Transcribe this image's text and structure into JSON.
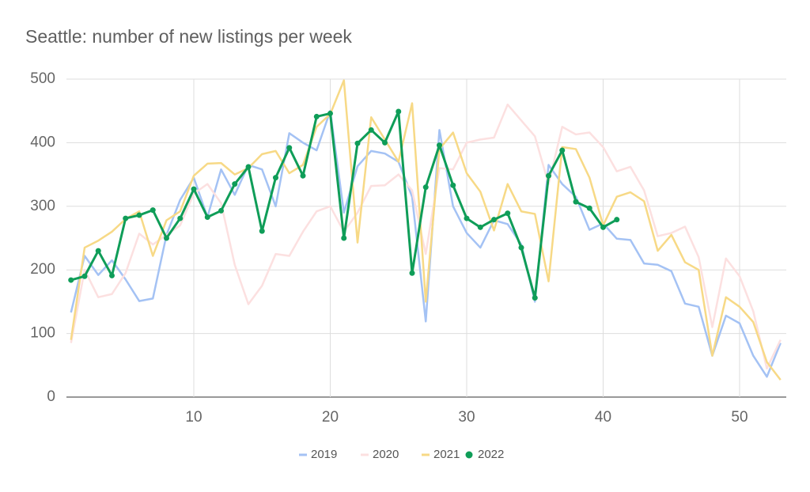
{
  "chart_data": {
    "type": "line",
    "title": "Seattle: number of new listings per week",
    "x": [
      1,
      2,
      3,
      4,
      5,
      6,
      7,
      8,
      9,
      10,
      11,
      12,
      13,
      14,
      15,
      16,
      17,
      18,
      19,
      20,
      21,
      22,
      23,
      24,
      25,
      26,
      27,
      28,
      29,
      30,
      31,
      32,
      33,
      34,
      35,
      36,
      37,
      38,
      39,
      40,
      41,
      42,
      43,
      44,
      45,
      46,
      47,
      48,
      49,
      50,
      51,
      52,
      53
    ],
    "xlim": [
      1,
      53
    ],
    "xticks": [
      10,
      20,
      30,
      40,
      50
    ],
    "ylim": [
      0,
      500
    ],
    "yticks": [
      0,
      100,
      200,
      300,
      400,
      500
    ],
    "grid": true,
    "legend": "bottom",
    "series": [
      {
        "name": "2019",
        "color": "#a4c2f4",
        "markers": false,
        "values": [
          133,
          222,
          192,
          215,
          185,
          151,
          155,
          255,
          310,
          345,
          283,
          358,
          318,
          365,
          358,
          300,
          415,
          400,
          388,
          450,
          290,
          363,
          387,
          383,
          370,
          315,
          119,
          420,
          300,
          258,
          235,
          278,
          272,
          240,
          150,
          365,
          335,
          315,
          263,
          273,
          249,
          247,
          210,
          208,
          198,
          147,
          142,
          65,
          128,
          116,
          65,
          32,
          85
        ]
      },
      {
        "name": "2020",
        "color": "#fce0e0",
        "markers": false,
        "values": [
          85,
          200,
          157,
          162,
          195,
          257,
          240,
          255,
          270,
          320,
          335,
          305,
          208,
          146,
          175,
          225,
          222,
          260,
          292,
          300,
          260,
          290,
          332,
          333,
          350,
          325,
          225,
          360,
          358,
          400,
          405,
          408,
          460,
          435,
          410,
          335,
          425,
          413,
          416,
          393,
          355,
          362,
          325,
          253,
          258,
          268,
          220,
          110,
          218,
          190,
          135,
          45,
          90
        ]
      },
      {
        "name": "2021",
        "color": "#f7d986",
        "markers": false,
        "values": [
          90,
          235,
          246,
          260,
          280,
          292,
          222,
          278,
          292,
          348,
          367,
          368,
          350,
          360,
          382,
          387,
          352,
          365,
          425,
          445,
          498,
          243,
          440,
          405,
          370,
          462,
          150,
          390,
          416,
          352,
          323,
          262,
          335,
          292,
          288,
          182,
          393,
          390,
          345,
          270,
          315,
          322,
          308,
          230,
          255,
          212,
          200,
          65,
          157,
          142,
          118,
          55,
          27
        ]
      },
      {
        "name": "2022",
        "color": "#0f9d58",
        "markers": true,
        "values": [
          184,
          190,
          230,
          191,
          281,
          286,
          294,
          250,
          281,
          327,
          283,
          293,
          335,
          362,
          261,
          345,
          392,
          348,
          441,
          446,
          250,
          399,
          420,
          400,
          449,
          195,
          330,
          396,
          333,
          281,
          267,
          279,
          289,
          235,
          156,
          348,
          388,
          307,
          297,
          267,
          279,
          null,
          null,
          null,
          null,
          null,
          null,
          null,
          null,
          null,
          null,
          null,
          null
        ]
      }
    ]
  }
}
